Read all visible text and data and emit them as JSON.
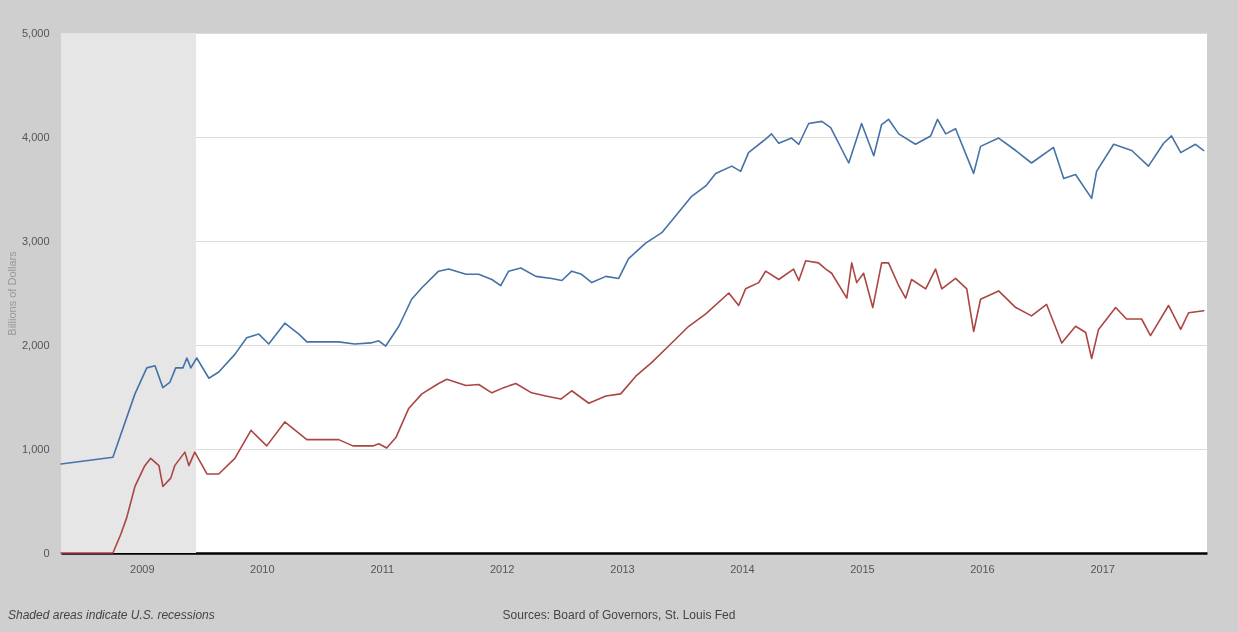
{
  "chart_data": {
    "type": "line",
    "ylabel": "Billions of Dollars",
    "annotations": [
      "Shaded areas indicate U.S. recessions",
      "Sources: Board of Governors, St. Louis Fed"
    ],
    "xlim": [
      "2008-04-30",
      "2017-11-16"
    ],
    "xticks": [
      "2009",
      "2010",
      "2011",
      "2012",
      "2013",
      "2014",
      "2015",
      "2016",
      "2017"
    ],
    "ylim": [
      0,
      5000
    ],
    "yticks": [
      0,
      {
        "value": 1000,
        "label": "1,000"
      },
      {
        "value": 2000,
        "label": "2,000"
      },
      {
        "value": 3000,
        "label": "3,000"
      },
      {
        "value": 4000,
        "label": "4,000"
      },
      {
        "value": 5000,
        "label": "5,000"
      }
    ],
    "grid": "y",
    "legend": false,
    "bands": [
      {
        "axis": "x",
        "from": "2008-04-30",
        "to": "2009-06-15",
        "color": "#e6e6e6"
      }
    ],
    "series": [
      {
        "color": "#4572a7",
        "x": [
          "2008-04-30",
          "2008-10-05",
          "2008-12-11",
          "2009-01-16",
          "2009-02-10",
          "2009-03-06",
          "2009-03-27",
          "2009-04-14",
          "2009-05-06",
          "2009-05-18",
          "2009-05-30",
          "2009-06-17",
          "2009-07-24",
          "2009-08-23",
          "2009-10-11",
          "2009-11-16",
          "2009-12-23",
          "2010-01-22",
          "2010-03-12",
          "2010-04-24",
          "2010-05-18",
          "2010-08-23",
          "2010-10-11",
          "2010-11-29",
          "2010-12-23",
          "2011-01-13",
          "2011-02-22",
          "2011-04-02",
          "2011-05-03",
          "2011-06-23",
          "2011-07-24",
          "2011-09-14",
          "2011-10-23",
          "2011-12-02",
          "2011-12-29",
          "2012-01-22",
          "2012-02-28",
          "2012-04-14",
          "2012-06-01",
          "2012-07-02",
          "2012-08-01",
          "2012-08-31",
          "2012-10-01",
          "2012-11-13",
          "2012-12-22",
          "2013-01-21",
          "2013-03-14",
          "2013-05-02",
          "2013-06-13",
          "2013-08-01",
          "2013-09-13",
          "2013-10-13",
          "2013-12-01",
          "2013-12-28",
          "2014-01-21",
          "2014-03-14",
          "2014-04-01",
          "2014-04-23",
          "2014-06-01",
          "2014-06-23",
          "2014-07-23",
          "2014-09-01",
          "2014-09-28",
          "2014-11-22",
          "2014-12-31",
          "2015-02-06",
          "2015-03-02",
          "2015-03-23",
          "2015-04-23",
          "2015-06-13",
          "2015-07-29",
          "2015-08-19",
          "2015-09-13",
          "2015-10-13",
          "2015-12-07",
          "2015-12-28",
          "2016-02-21",
          "2016-04-13",
          "2016-05-31",
          "2016-08-06",
          "2016-09-06",
          "2016-10-12",
          "2016-11-30",
          "2016-12-15",
          "2017-02-05",
          "2017-04-01",
          "2017-05-22",
          "2017-07-07",
          "2017-07-31",
          "2017-08-28",
          "2017-10-12",
          "2017-11-06"
        ],
        "values": [
          856,
          920,
          1530,
          1780,
          1800,
          1590,
          1640,
          1780,
          1780,
          1875,
          1780,
          1875,
          1680,
          1740,
          1910,
          2070,
          2105,
          2010,
          2210,
          2105,
          2030,
          2030,
          2010,
          2020,
          2040,
          1990,
          2180,
          2440,
          2550,
          2710,
          2730,
          2680,
          2680,
          2630,
          2570,
          2710,
          2740,
          2660,
          2640,
          2620,
          2710,
          2680,
          2600,
          2660,
          2640,
          2830,
          2980,
          3080,
          3240,
          3430,
          3530,
          3650,
          3720,
          3670,
          3850,
          3980,
          4030,
          3940,
          3990,
          3930,
          4130,
          4150,
          4090,
          3750,
          4130,
          3820,
          4120,
          4170,
          4030,
          3930,
          4010,
          4170,
          4030,
          4080,
          3650,
          3910,
          3990,
          3870,
          3750,
          3900,
          3600,
          3640,
          3410,
          3670,
          3930,
          3870,
          3720,
          3940,
          4010,
          3850,
          3930,
          3870
        ]
      },
      {
        "color": "#aa4643",
        "x": [
          "2008-04-30",
          "2008-10-05",
          "2008-10-29",
          "2008-11-16",
          "2008-12-11",
          "2009-01-10",
          "2009-01-28",
          "2009-02-22",
          "2009-03-06",
          "2009-03-30",
          "2009-04-11",
          "2009-05-12",
          "2009-05-24",
          "2009-06-11",
          "2009-07-18",
          "2009-08-23",
          "2009-10-11",
          "2009-11-29",
          "2010-01-16",
          "2010-03-12",
          "2010-05-18",
          "2010-08-23",
          "2010-10-05",
          "2010-12-05",
          "2010-12-23",
          "2011-01-16",
          "2011-02-13",
          "2011-03-24",
          "2011-05-03",
          "2011-06-23",
          "2011-07-18",
          "2011-09-14",
          "2011-10-23",
          "2011-12-02",
          "2012-01-07",
          "2012-02-13",
          "2012-04-01",
          "2012-05-14",
          "2012-06-29",
          "2012-08-01",
          "2012-09-22",
          "2012-11-13",
          "2012-12-28",
          "2013-02-12",
          "2013-04-01",
          "2013-05-23",
          "2013-07-23",
          "2013-09-13",
          "2013-11-22",
          "2013-12-22",
          "2014-01-12",
          "2014-02-21",
          "2014-03-14",
          "2014-04-23",
          "2014-06-07",
          "2014-06-23",
          "2014-07-14",
          "2014-08-22",
          "2014-09-13",
          "2014-10-01",
          "2014-11-16",
          "2014-12-01",
          "2014-12-16",
          "2015-01-06",
          "2015-02-03",
          "2015-03-02",
          "2015-03-23",
          "2015-04-23",
          "2015-05-14",
          "2015-06-01",
          "2015-07-14",
          "2015-08-13",
          "2015-09-01",
          "2015-10-13",
          "2015-11-16",
          "2015-12-07",
          "2015-12-28",
          "2016-02-21",
          "2016-04-13",
          "2016-05-31",
          "2016-07-16",
          "2016-08-31",
          "2016-10-12",
          "2016-11-12",
          "2016-11-30",
          "2016-12-21",
          "2017-02-11",
          "2017-03-16",
          "2017-05-01",
          "2017-05-28",
          "2017-07-22",
          "2017-08-28",
          "2017-09-21",
          "2017-11-06"
        ],
        "values": [
          0,
          0,
          180,
          340,
          640,
          840,
          910,
          840,
          640,
          720,
          840,
          970,
          840,
          970,
          760,
          760,
          910,
          1180,
          1030,
          1260,
          1090,
          1090,
          1030,
          1030,
          1050,
          1010,
          1110,
          1390,
          1530,
          1630,
          1670,
          1610,
          1620,
          1540,
          1590,
          1630,
          1540,
          1510,
          1480,
          1560,
          1440,
          1510,
          1530,
          1700,
          1830,
          1990,
          2180,
          2300,
          2500,
          2380,
          2540,
          2600,
          2710,
          2630,
          2730,
          2620,
          2810,
          2790,
          2730,
          2690,
          2450,
          2790,
          2600,
          2690,
          2360,
          2790,
          2790,
          2570,
          2450,
          2630,
          2540,
          2730,
          2540,
          2640,
          2540,
          2130,
          2440,
          2520,
          2360,
          2280,
          2390,
          2020,
          2180,
          2120,
          1870,
          2150,
          2360,
          2250,
          2250,
          2090,
          2380,
          2150,
          2310,
          2330
        ]
      }
    ]
  }
}
